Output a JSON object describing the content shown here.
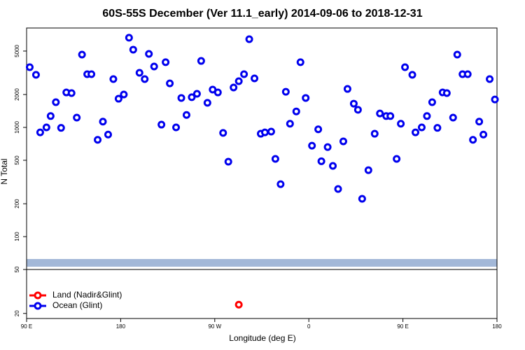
{
  "chart_data": {
    "type": "scatter",
    "title": "60S-55S December (Ver 11.1_early)   2014-09-06 to 2018-12-31",
    "xlabel": "Longitude (deg E)",
    "ylabel": "N Total",
    "log_y": true,
    "legend": "lower left",
    "xlim": [
      90,
      540
    ],
    "xticks": [
      {
        "value": 90,
        "label": "90 E"
      },
      180,
      {
        "value": 270,
        "label": "90 W"
      },
      {
        "value": 360,
        "label": "0"
      },
      {
        "value": 450,
        "label": "90 E"
      },
      {
        "value": 540,
        "label": "180"
      }
    ],
    "ylim": [
      50,
      8130
    ],
    "yticks": [
      100,
      200,
      500,
      1000,
      2000,
      5000
    ],
    "y2lim": [
      18,
      50
    ],
    "y2ticks": [
      20,
      50
    ],
    "series": [
      {
        "name": "Land (Nadir&Glint)",
        "color": "#ff0000",
        "axis": "y2",
        "x": [
          293
        ],
        "values": [
          24
        ]
      },
      {
        "name": "Ocean (Glint)",
        "color": "#0000ee",
        "x": [
          93,
          99,
          103,
          109,
          113,
          118,
          123,
          128,
          133,
          138,
          143,
          148,
          152,
          158,
          163,
          168,
          173,
          178,
          183,
          188,
          192,
          198,
          203,
          207,
          212,
          219,
          223,
          227,
          233,
          238,
          243,
          248,
          253,
          257,
          263,
          268,
          273,
          278,
          283,
          288,
          293,
          298,
          303,
          308,
          314,
          318,
          324,
          328,
          333,
          338,
          342,
          348,
          352,
          357,
          363,
          369,
          372,
          378,
          383,
          388,
          393,
          397,
          403,
          407,
          411,
          417,
          423,
          428,
          434,
          438,
          444,
          448,
          452,
          459,
          462,
          468,
          473,
          478,
          483,
          488,
          492,
          498,
          502,
          507,
          512,
          517,
          523,
          527,
          533,
          538
        ],
        "values": [
          3560,
          3030,
          900,
          1000,
          1270,
          1700,
          990,
          2090,
          2060,
          1230,
          4640,
          3070,
          3070,
          770,
          1130,
          860,
          2770,
          1830,
          2000,
          6620,
          5150,
          3160,
          2770,
          4710,
          3610,
          1060,
          3950,
          2530,
          1000,
          1860,
          1300,
          1890,
          2030,
          4060,
          1680,
          2220,
          2090,
          890,
          485,
          2320,
          2650,
          3070,
          6420,
          2810,
          875,
          900,
          915,
          515,
          302,
          2120,
          1080,
          1400,
          3950,
          1860,
          680,
          960,
          490,
          660,
          444,
          273,
          745,
          2250,
          1650,
          1450,
          222,
          406,
          875,
          1340,
          1270,
          1270,
          515,
          1080,
          3560,
          3030,
          900,
          1000,
          1270,
          1700,
          990,
          2090,
          2060,
          1230,
          4640,
          3070,
          3070,
          770,
          1130,
          860,
          2770,
          1800
        ]
      }
    ]
  }
}
